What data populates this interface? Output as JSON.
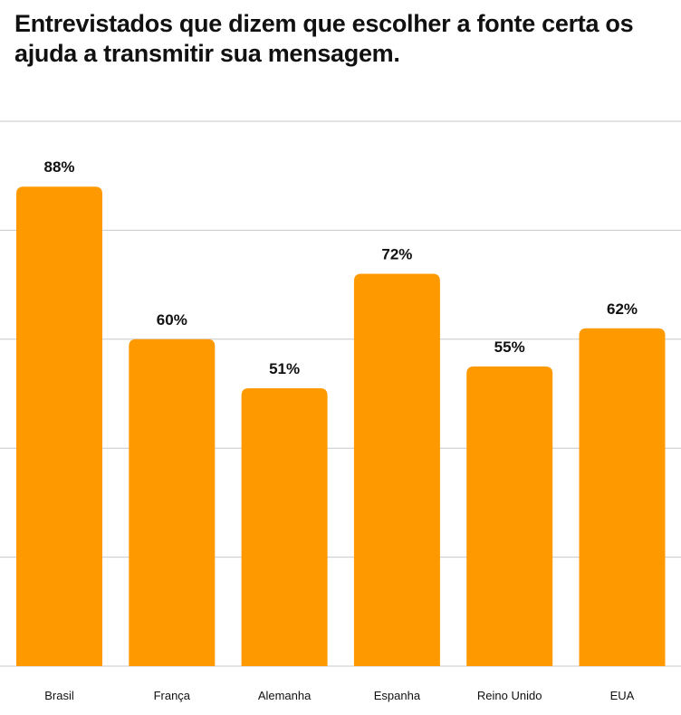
{
  "chart_data": {
    "type": "bar",
    "title": "Entrevistados que dizem que escolher a fonte certa os ajuda a transmitir sua mensagem.",
    "categories": [
      "Brasil",
      "França",
      "Alemanha",
      "Espanha",
      "Reino Unido",
      "EUA"
    ],
    "values": [
      88,
      60,
      51,
      72,
      55,
      62
    ],
    "data_labels": [
      "88%",
      "60%",
      "51%",
      "72%",
      "55%",
      "62%"
    ],
    "xlabel": "",
    "ylabel": "",
    "ylim": [
      0,
      100
    ],
    "yticks": [
      0,
      20,
      40,
      60,
      80,
      100
    ],
    "grid": true,
    "bar_color": "#FF9900",
    "grid_color": "#C8C8C8"
  }
}
